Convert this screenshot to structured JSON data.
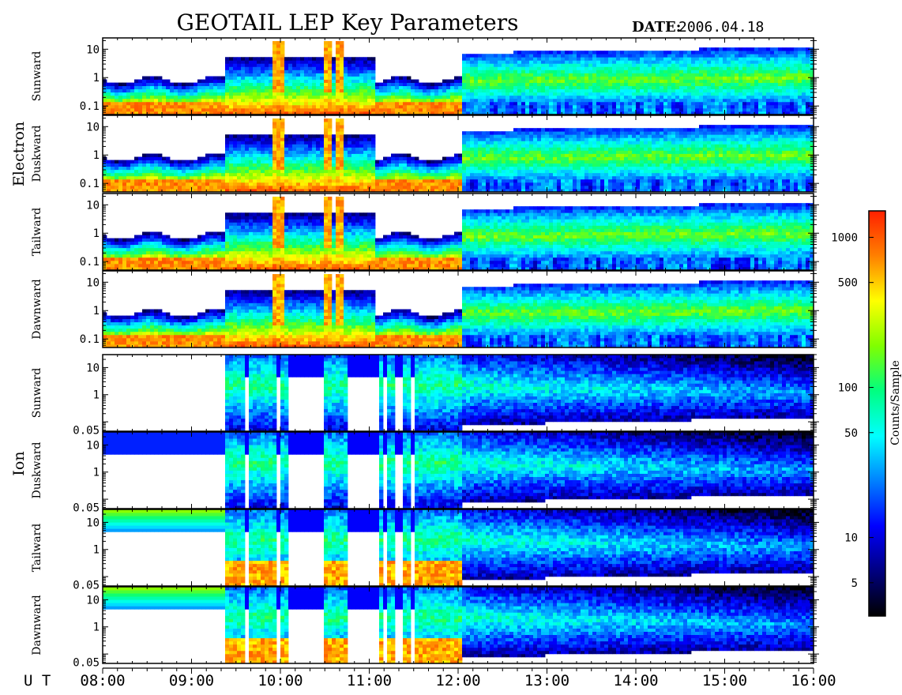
{
  "header": {
    "title": "GEOTAIL LEP Key Parameters",
    "date_label": "DATE:",
    "date_value": "2006.04.18"
  },
  "colorbar": {
    "label": "Counts/Sample",
    "ticks": [
      "1000",
      "500",
      "100",
      "50",
      "10",
      "5"
    ],
    "tick_values": [
      1000,
      500,
      100,
      50,
      10,
      5
    ],
    "range": [
      3,
      1500
    ],
    "scale": "log",
    "colors": [
      "#000000",
      "#000080",
      "#0000ff",
      "#0080ff",
      "#00ffff",
      "#00ff80",
      "#80ff00",
      "#ffff00",
      "#ff8000",
      "#ff2000"
    ]
  },
  "chart_data": {
    "type": "heatmap",
    "x_unit_label": "U T",
    "x_tick_labels": [
      "08:00",
      "09:00",
      "10:00",
      "11:00",
      "12:00",
      "13:00",
      "14:00",
      "15:00",
      "16:00"
    ],
    "x_range_hours": [
      8,
      16
    ],
    "groups": [
      {
        "name": "Electron",
        "panels": [
          {
            "label": "Sunward",
            "y_scale": "log",
            "y_ticks": [
              "10",
              "1",
              "0.1"
            ],
            "y_tick_values": [
              10,
              1,
              0.1
            ],
            "y_range": [
              0.05,
              25
            ]
          },
          {
            "label": "Duskward",
            "y_scale": "log",
            "y_ticks": [
              "10",
              "1",
              "0.1"
            ],
            "y_tick_values": [
              10,
              1,
              0.1
            ],
            "y_range": [
              0.05,
              25
            ]
          },
          {
            "label": "Tailward",
            "y_scale": "log",
            "y_ticks": [
              "10",
              "1",
              "0.1"
            ],
            "y_tick_values": [
              10,
              1,
              0.1
            ],
            "y_range": [
              0.05,
              25
            ]
          },
          {
            "label": "Dawnward",
            "y_scale": "log",
            "y_ticks": [
              "10",
              "1",
              "0.1"
            ],
            "y_tick_values": [
              10,
              1,
              0.1
            ],
            "y_range": [
              0.05,
              25
            ]
          }
        ]
      },
      {
        "name": "Ion",
        "panels": [
          {
            "label": "Sunward",
            "y_scale": "log",
            "y_ticks": [
              "10",
              "1",
              "0.05"
            ],
            "y_tick_values": [
              10,
              1,
              0.05
            ],
            "y_range": [
              0.045,
              30
            ]
          },
          {
            "label": "Duskward",
            "y_scale": "log",
            "y_ticks": [
              "10",
              "1",
              "0.05"
            ],
            "y_tick_values": [
              10,
              1,
              0.05
            ],
            "y_range": [
              0.045,
              30
            ]
          },
          {
            "label": "Tailward",
            "y_scale": "log",
            "y_ticks": [
              "10",
              "1",
              "0.05"
            ],
            "y_tick_values": [
              10,
              1,
              0.05
            ],
            "y_range": [
              0.045,
              30
            ]
          },
          {
            "label": "Dawnward",
            "y_scale": "log",
            "y_ticks": [
              "10",
              "1",
              "0.05"
            ],
            "y_tick_values": [
              10,
              1,
              0.05
            ],
            "y_range": [
              0.045,
              30
            ]
          }
        ]
      }
    ]
  }
}
